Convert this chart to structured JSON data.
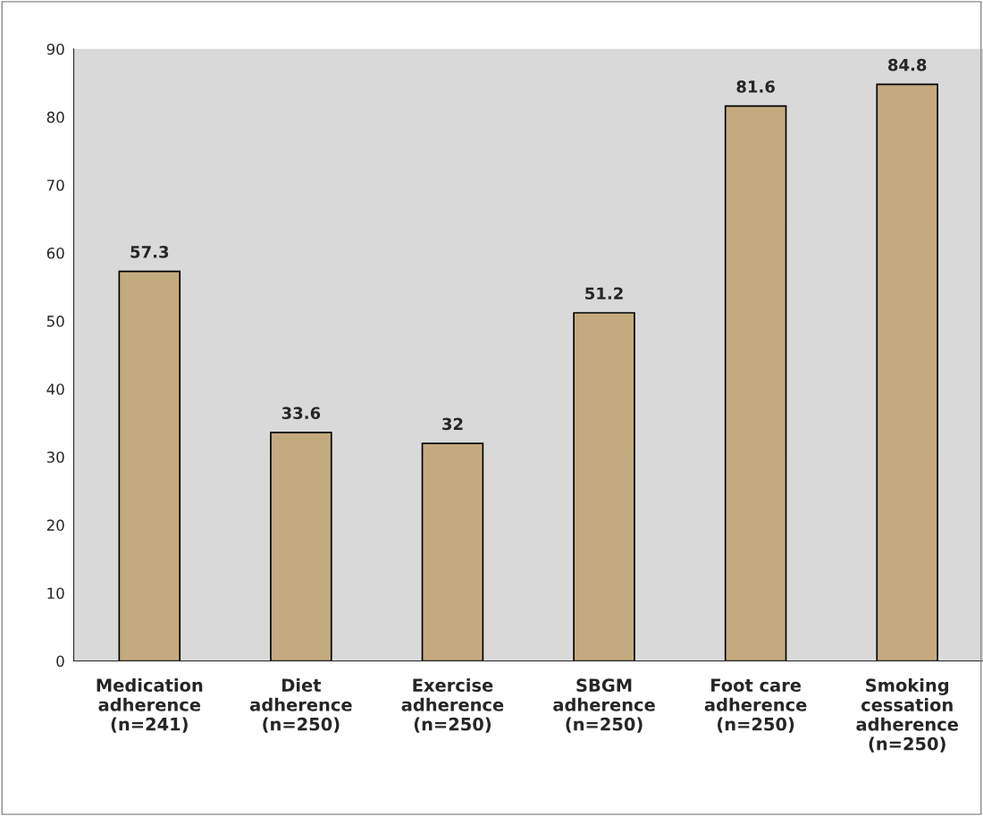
{
  "chart_data": {
    "type": "bar",
    "categories": [
      "Medication\nadherence\n(n=241)",
      "Diet\nadherence\n(n=250)",
      "Exercise\nadherence\n(n=250)",
      "SBGM\nadherence\n(n=250)",
      "Foot care\nadherence\n(n=250)",
      "Smoking\ncessation\nadherence\n(n=250)"
    ],
    "values": [
      57.3,
      33.6,
      32,
      51.2,
      81.6,
      84.8
    ],
    "color": "#c4ab7f",
    "ylim": [
      0,
      90
    ],
    "yticks": [
      0,
      10,
      20,
      30,
      40,
      50,
      60,
      70,
      80,
      90
    ],
    "data_labels": true,
    "grid": false
  }
}
